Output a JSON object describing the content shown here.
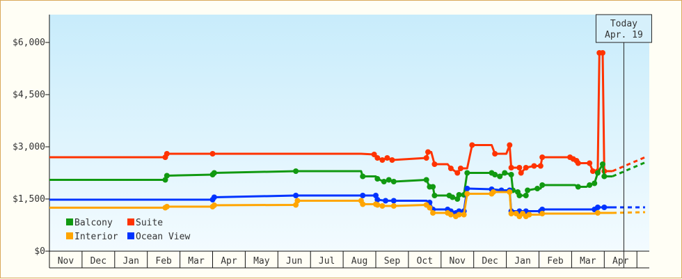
{
  "chart_data": {
    "type": "line",
    "title": "",
    "xlabel": "",
    "ylabel": "",
    "ylim": [
      0,
      6800
    ],
    "yticks": [
      {
        "value": 0,
        "label": "$0"
      },
      {
        "value": 1500,
        "label": "$1,500"
      },
      {
        "value": 3000,
        "label": "$3,000"
      },
      {
        "value": 4500,
        "label": "$4,500"
      },
      {
        "value": 6000,
        "label": "$6,000"
      }
    ],
    "months": [
      "Nov",
      "Dec",
      "Jan",
      "Feb",
      "Mar",
      "Apr",
      "May",
      "Jun",
      "Jul",
      "Aug",
      "Sep",
      "Oct",
      "Nov",
      "Dec",
      "Jan",
      "Feb",
      "Mar",
      "Apr"
    ],
    "month_unit_note": "",
    "today": {
      "label": "Today",
      "date": "Apr. 19",
      "month_pos": 17.6
    },
    "legend": [
      {
        "name": "Balcony",
        "color": "#119911"
      },
      {
        "name": "Suite",
        "color": "#ff3300"
      },
      {
        "name": "Interior",
        "color": "#ffa500"
      },
      {
        "name": "Ocean View",
        "color": "#0033ff"
      }
    ],
    "series": [
      {
        "name": "Suite",
        "color": "#ff3300",
        "points": [
          [
            0.0,
            2700
          ],
          [
            3.55,
            2700
          ],
          [
            3.6,
            2800
          ],
          [
            5.0,
            2800
          ],
          [
            9.55,
            2800
          ],
          [
            9.95,
            2780
          ],
          [
            10.05,
            2680
          ],
          [
            10.2,
            2620
          ],
          [
            10.35,
            2680
          ],
          [
            10.5,
            2620
          ],
          [
            11.55,
            2680
          ],
          [
            11.6,
            2850
          ],
          [
            11.7,
            2850
          ],
          [
            11.8,
            2500
          ],
          [
            12.2,
            2500
          ],
          [
            12.3,
            2380
          ],
          [
            12.5,
            2250
          ],
          [
            12.6,
            2380
          ],
          [
            12.8,
            2380
          ],
          [
            12.95,
            3050
          ],
          [
            13.55,
            3050
          ],
          [
            13.65,
            2800
          ],
          [
            14.0,
            2800
          ],
          [
            14.1,
            3050
          ],
          [
            14.15,
            2400
          ],
          [
            14.4,
            2400
          ],
          [
            14.45,
            2250
          ],
          [
            14.6,
            2400
          ],
          [
            14.85,
            2450
          ],
          [
            15.05,
            2450
          ],
          [
            15.1,
            2700
          ],
          [
            15.95,
            2700
          ],
          [
            16.05,
            2650
          ],
          [
            16.15,
            2600
          ],
          [
            16.2,
            2530
          ],
          [
            16.55,
            2530
          ],
          [
            16.65,
            2300
          ],
          [
            16.8,
            2300
          ],
          [
            16.85,
            5700
          ],
          [
            16.95,
            5700
          ],
          [
            17.0,
            2300
          ],
          [
            17.25,
            2300
          ]
        ],
        "projection": [
          [
            17.25,
            2300
          ],
          [
            18.25,
            2700
          ]
        ]
      },
      {
        "name": "Balcony",
        "color": "#119911",
        "points": [
          [
            0.0,
            2050
          ],
          [
            3.55,
            2050
          ],
          [
            3.6,
            2170
          ],
          [
            5.0,
            2200
          ],
          [
            5.05,
            2250
          ],
          [
            7.55,
            2300
          ],
          [
            9.55,
            2300
          ],
          [
            9.6,
            2150
          ],
          [
            10.0,
            2150
          ],
          [
            10.05,
            2080
          ],
          [
            10.25,
            2000
          ],
          [
            10.4,
            2050
          ],
          [
            10.55,
            2000
          ],
          [
            11.55,
            2050
          ],
          [
            11.65,
            1850
          ],
          [
            11.75,
            1850
          ],
          [
            11.8,
            1600
          ],
          [
            12.25,
            1600
          ],
          [
            12.35,
            1550
          ],
          [
            12.5,
            1500
          ],
          [
            12.55,
            1620
          ],
          [
            12.7,
            1620
          ],
          [
            12.8,
            2250
          ],
          [
            13.55,
            2250
          ],
          [
            13.65,
            2200
          ],
          [
            13.8,
            2150
          ],
          [
            13.95,
            2250
          ],
          [
            14.15,
            2200
          ],
          [
            14.2,
            1750
          ],
          [
            14.35,
            1700
          ],
          [
            14.4,
            1600
          ],
          [
            14.6,
            1600
          ],
          [
            14.65,
            1750
          ],
          [
            14.95,
            1800
          ],
          [
            15.05,
            1800
          ],
          [
            15.1,
            1900
          ],
          [
            16.1,
            1900
          ],
          [
            16.2,
            1850
          ],
          [
            16.45,
            1850
          ],
          [
            16.55,
            1900
          ],
          [
            16.7,
            1950
          ],
          [
            16.8,
            2250
          ],
          [
            16.95,
            2500
          ],
          [
            17.0,
            2150
          ],
          [
            17.25,
            2150
          ]
        ],
        "projection": [
          [
            17.25,
            2150
          ],
          [
            18.25,
            2550
          ]
        ]
      },
      {
        "name": "Ocean View",
        "color": "#0033ff",
        "points": [
          [
            0.0,
            1480
          ],
          [
            5.0,
            1480
          ],
          [
            5.05,
            1550
          ],
          [
            7.55,
            1600
          ],
          [
            9.55,
            1600
          ],
          [
            9.6,
            1600
          ],
          [
            9.8,
            1600
          ],
          [
            10.0,
            1600
          ],
          [
            10.05,
            1480
          ],
          [
            10.3,
            1450
          ],
          [
            10.4,
            1450
          ],
          [
            10.55,
            1450
          ],
          [
            11.55,
            1450
          ],
          [
            11.65,
            1400
          ],
          [
            11.75,
            1200
          ],
          [
            12.2,
            1200
          ],
          [
            12.3,
            1150
          ],
          [
            12.45,
            1100
          ],
          [
            12.55,
            1150
          ],
          [
            12.7,
            1150
          ],
          [
            12.8,
            1800
          ],
          [
            13.55,
            1780
          ],
          [
            13.85,
            1750
          ],
          [
            14.1,
            1750
          ],
          [
            14.15,
            1150
          ],
          [
            14.4,
            1150
          ],
          [
            14.5,
            1150
          ],
          [
            14.6,
            1150
          ],
          [
            14.7,
            1150
          ],
          [
            15.05,
            1150
          ],
          [
            15.1,
            1200
          ],
          [
            16.7,
            1200
          ],
          [
            16.8,
            1260
          ],
          [
            17.0,
            1260
          ],
          [
            17.25,
            1260
          ]
        ],
        "projection": [
          [
            17.25,
            1260
          ],
          [
            18.25,
            1260
          ]
        ]
      },
      {
        "name": "Interior",
        "color": "#ffa500",
        "points": [
          [
            0.0,
            1250
          ],
          [
            3.55,
            1250
          ],
          [
            3.6,
            1280
          ],
          [
            5.0,
            1280
          ],
          [
            5.05,
            1320
          ],
          [
            7.55,
            1330
          ],
          [
            7.6,
            1450
          ],
          [
            9.55,
            1450
          ],
          [
            9.6,
            1350
          ],
          [
            10.0,
            1350
          ],
          [
            10.05,
            1330
          ],
          [
            10.2,
            1300
          ],
          [
            10.4,
            1300
          ],
          [
            10.55,
            1300
          ],
          [
            11.55,
            1330
          ],
          [
            11.65,
            1250
          ],
          [
            11.75,
            1100
          ],
          [
            12.2,
            1100
          ],
          [
            12.3,
            1050
          ],
          [
            12.45,
            1000
          ],
          [
            12.55,
            1050
          ],
          [
            12.7,
            1050
          ],
          [
            12.8,
            1650
          ],
          [
            13.55,
            1650
          ],
          [
            13.6,
            1700
          ],
          [
            14.1,
            1700
          ],
          [
            14.15,
            1080
          ],
          [
            14.3,
            1080
          ],
          [
            14.4,
            1000
          ],
          [
            14.5,
            1080
          ],
          [
            14.6,
            1000
          ],
          [
            14.7,
            1050
          ],
          [
            15.05,
            1050
          ],
          [
            15.1,
            1080
          ],
          [
            16.7,
            1080
          ],
          [
            16.8,
            1100
          ],
          [
            17.0,
            1100
          ],
          [
            17.25,
            1100
          ]
        ],
        "projection": [
          [
            17.25,
            1100
          ],
          [
            18.25,
            1120
          ]
        ]
      }
    ]
  }
}
